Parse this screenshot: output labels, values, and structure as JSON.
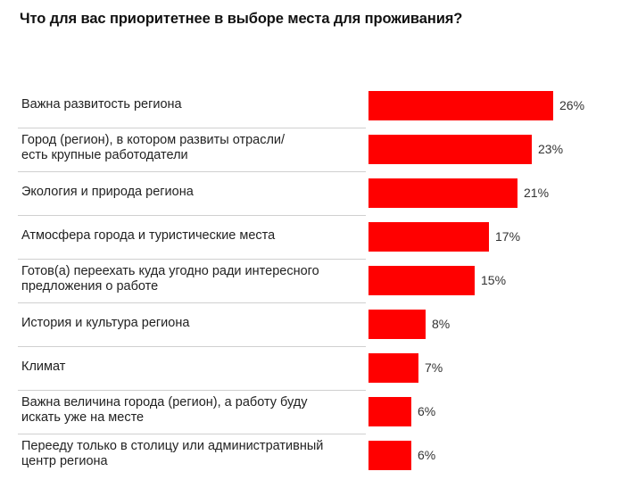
{
  "chart_data": {
    "type": "bar",
    "orientation": "horizontal",
    "title": "Что для вас приоритетнее в выборе места для проживания?",
    "categories": [
      "Важна развитость региона",
      "Город (регион), в котором развиты отрасли/ есть крупные работодатели",
      "Экология и природа региона",
      "Атмосфера города и туристические места",
      "Готов(а) переехать куда угодно ради интересного предложения о работе",
      "История и культура региона",
      "Климат",
      "Важна величина города (регион), а работу буду искать уже на месте",
      "Перееду только в столицу или административный центр региона"
    ],
    "category_lines": [
      [
        "Важна развитость региона"
      ],
      [
        "Город (регион), в котором развиты отрасли/",
        "есть крупные работодатели"
      ],
      [
        "Экология и природа региона"
      ],
      [
        "Атмосфера города и туристические места"
      ],
      [
        "Готов(а) переехать куда угодно ради интересного",
        "предложения о работе"
      ],
      [
        "История и культура региона"
      ],
      [
        "Климат"
      ],
      [
        "Важна величина города (регион), а работу буду",
        "искать уже на месте"
      ],
      [
        "Перееду только в столицу или административный",
        "центр региона"
      ]
    ],
    "values": [
      26,
      23,
      21,
      17,
      15,
      8,
      7,
      6,
      6
    ],
    "value_labels": [
      "26%",
      "23%",
      "21%",
      "17%",
      "15%",
      "8%",
      "7%",
      "6%",
      "6%"
    ],
    "unit": "%",
    "xlim": [
      0,
      26
    ],
    "bar_color": "#ff0000"
  }
}
